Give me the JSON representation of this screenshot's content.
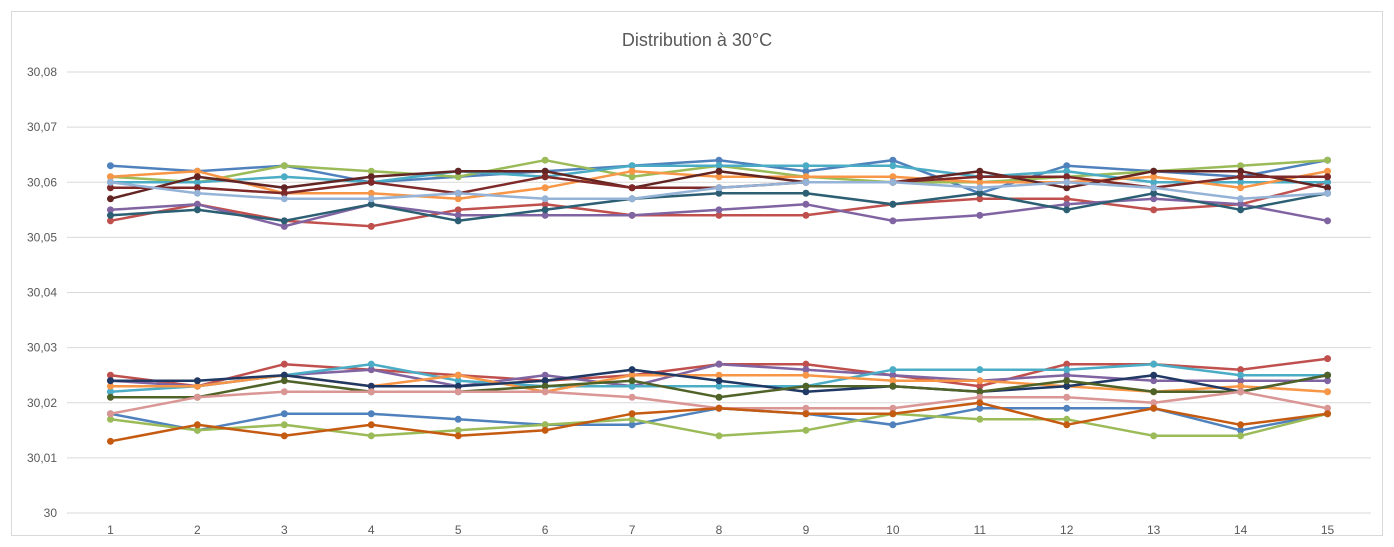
{
  "chart_data": {
    "type": "line",
    "title": "Distribution à 30°C",
    "xlabel": "",
    "ylabel": "",
    "ylim": [
      30,
      30.08
    ],
    "ytick_labels": [
      "30",
      "30,01",
      "30,02",
      "30,03",
      "30,04",
      "30,05",
      "30,06",
      "30,07",
      "30,08"
    ],
    "categories": [
      "1",
      "2",
      "3",
      "4",
      "5",
      "6",
      "7",
      "8",
      "9",
      "10",
      "11",
      "12",
      "13",
      "14",
      "15"
    ],
    "grid": "horizontal",
    "legend": "none",
    "series": [
      {
        "color": "#4f81bd",
        "values": [
          30.063,
          30.062,
          30.063,
          30.06,
          30.061,
          30.062,
          30.063,
          30.064,
          30.062,
          30.064,
          30.058,
          30.063,
          30.062,
          30.061,
          30.064
        ]
      },
      {
        "color": "#c0504d",
        "values": [
          30.053,
          30.056,
          30.053,
          30.052,
          30.055,
          30.056,
          30.054,
          30.054,
          30.054,
          30.056,
          30.057,
          30.057,
          30.055,
          30.056,
          30.06
        ]
      },
      {
        "color": "#9bbb59",
        "values": [
          30.061,
          30.06,
          30.063,
          30.062,
          30.061,
          30.064,
          30.061,
          30.063,
          30.061,
          30.06,
          30.06,
          30.061,
          30.062,
          30.063,
          30.064
        ]
      },
      {
        "color": "#8064a2",
        "values": [
          30.055,
          30.056,
          30.052,
          30.056,
          30.054,
          30.054,
          30.054,
          30.055,
          30.056,
          30.053,
          30.054,
          30.056,
          30.057,
          30.056,
          30.053
        ]
      },
      {
        "color": "#4bacc6",
        "values": [
          30.06,
          30.06,
          30.061,
          30.06,
          30.062,
          30.061,
          30.063,
          30.063,
          30.063,
          30.063,
          30.061,
          30.062,
          30.06,
          30.06,
          30.06
        ]
      },
      {
        "color": "#f79646",
        "values": [
          30.061,
          30.062,
          30.058,
          30.058,
          30.057,
          30.059,
          30.062,
          30.061,
          30.061,
          30.061,
          30.06,
          30.06,
          30.061,
          30.059,
          30.062
        ]
      },
      {
        "color": "#632523",
        "values": [
          30.057,
          30.061,
          30.059,
          30.061,
          30.062,
          30.062,
          30.059,
          30.062,
          30.06,
          30.06,
          30.062,
          30.059,
          30.062,
          30.062,
          30.059
        ]
      },
      {
        "color": "#7f2a28",
        "values": [
          30.059,
          30.059,
          30.058,
          30.06,
          30.058,
          30.061,
          30.059,
          30.059,
          30.06,
          30.06,
          30.061,
          30.061,
          30.059,
          30.061,
          30.061
        ]
      },
      {
        "color": "#2c5f73",
        "values": [
          30.054,
          30.055,
          30.053,
          30.056,
          30.053,
          30.055,
          30.057,
          30.058,
          30.058,
          30.056,
          30.058,
          30.055,
          30.058,
          30.055,
          30.058
        ]
      },
      {
        "color": "#95b3d7",
        "values": [
          30.06,
          30.058,
          30.057,
          30.057,
          30.058,
          30.057,
          30.057,
          30.059,
          30.06,
          30.06,
          30.059,
          30.06,
          30.059,
          30.057,
          30.058
        ]
      },
      {
        "color": "#4f81bd",
        "values": [
          30.018,
          30.015,
          30.018,
          30.018,
          30.017,
          30.016,
          30.016,
          30.019,
          30.018,
          30.016,
          30.019,
          30.019,
          30.019,
          30.015,
          30.018
        ]
      },
      {
        "color": "#c0504d",
        "values": [
          30.025,
          30.023,
          30.027,
          30.026,
          30.025,
          30.024,
          30.025,
          30.027,
          30.027,
          30.025,
          30.023,
          30.027,
          30.027,
          30.026,
          30.028
        ]
      },
      {
        "color": "#9bbb59",
        "values": [
          30.017,
          30.015,
          30.016,
          30.014,
          30.015,
          30.016,
          30.017,
          30.014,
          30.015,
          30.018,
          30.017,
          30.017,
          30.014,
          30.014,
          30.018
        ]
      },
      {
        "color": "#8064a2",
        "values": [
          30.024,
          30.023,
          30.025,
          30.026,
          30.023,
          30.025,
          30.023,
          30.027,
          30.026,
          30.025,
          30.024,
          30.025,
          30.024,
          30.024,
          30.024
        ]
      },
      {
        "color": "#4bacc6",
        "values": [
          30.022,
          30.023,
          30.025,
          30.027,
          30.024,
          30.023,
          30.023,
          30.023,
          30.023,
          30.026,
          30.026,
          30.026,
          30.027,
          30.025,
          30.025
        ]
      },
      {
        "color": "#f79646",
        "values": [
          30.023,
          30.023,
          30.025,
          30.023,
          30.025,
          30.022,
          30.025,
          30.025,
          30.025,
          30.024,
          30.024,
          30.023,
          30.022,
          30.023,
          30.022
        ]
      },
      {
        "color": "#1f3864",
        "values": [
          30.024,
          30.024,
          30.025,
          30.023,
          30.023,
          30.024,
          30.026,
          30.024,
          30.022,
          30.023,
          30.022,
          30.023,
          30.025,
          30.022,
          30.025
        ]
      },
      {
        "color": "#4f6228",
        "values": [
          30.021,
          30.021,
          30.024,
          30.022,
          30.022,
          30.023,
          30.024,
          30.021,
          30.023,
          30.023,
          30.022,
          30.024,
          30.022,
          30.022,
          30.025
        ]
      },
      {
        "color": "#d99694",
        "values": [
          30.018,
          30.021,
          30.022,
          30.022,
          30.022,
          30.022,
          30.021,
          30.019,
          30.019,
          30.019,
          30.021,
          30.021,
          30.02,
          30.022,
          30.019
        ]
      },
      {
        "color": "#c55a11",
        "values": [
          30.013,
          30.016,
          30.014,
          30.016,
          30.014,
          30.015,
          30.018,
          30.019,
          30.018,
          30.018,
          30.02,
          30.016,
          30.019,
          30.016,
          30.018
        ]
      }
    ]
  }
}
